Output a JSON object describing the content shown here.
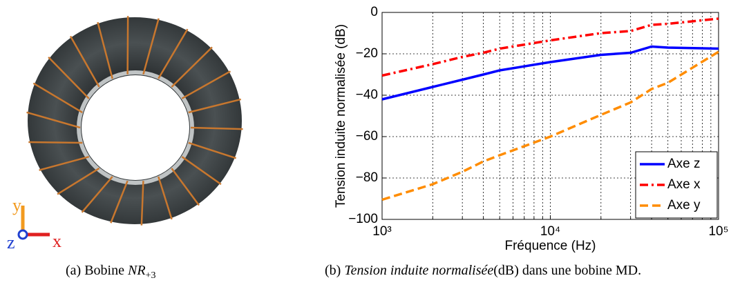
{
  "figure_a": {
    "axis_labels": {
      "y": "y",
      "z": "z",
      "x": "x"
    },
    "caption": {
      "prefix": "(a) Bobine ",
      "symbol": "NR",
      "subscript": "+3"
    }
  },
  "chart_data": {
    "type": "line",
    "x_label": "Fréquence (Hz)",
    "y_label": "Tension induite normalisée (dB)",
    "x": [
      1000,
      2000,
      3000,
      4000,
      5000,
      10000,
      20000,
      30000,
      40000,
      50000,
      100000
    ],
    "series": [
      {
        "name": "Axe z",
        "color": "#0000ff",
        "dash": "solid",
        "values": [
          -42,
          -36,
          -32.5,
          -30,
          -28,
          -24,
          -20.5,
          -19.5,
          -16.5,
          -17,
          -17.5
        ]
      },
      {
        "name": "Axe x",
        "color": "#ff0000",
        "dash": "dashdot",
        "values": [
          -30.5,
          -25,
          -21.5,
          -19.5,
          -17.5,
          -13.5,
          -10,
          -9,
          -6,
          -5.5,
          -3
        ]
      },
      {
        "name": "Axe y",
        "color": "#ff8c00",
        "dash": "dashed",
        "values": [
          -90.5,
          -83,
          -77,
          -72,
          -69,
          -60,
          -49.5,
          -43.5,
          -37,
          -34,
          -19
        ]
      }
    ],
    "xlim": [
      1000,
      100000
    ],
    "log_x": true,
    "xticks": [
      {
        "value": 1000,
        "label": "10³"
      },
      {
        "value": 10000,
        "label": "10⁴"
      },
      {
        "value": 100000,
        "label": "10⁵"
      }
    ],
    "xminor_ticks": [
      2000,
      3000,
      4000,
      5000,
      6000,
      7000,
      8000,
      9000,
      20000,
      30000,
      40000,
      50000,
      60000,
      70000,
      80000,
      90000
    ],
    "ylim": [
      -100,
      0
    ],
    "yticks": [
      {
        "value": -100,
        "label": "−100"
      },
      {
        "value": -80,
        "label": "−80"
      },
      {
        "value": -60,
        "label": "−60"
      },
      {
        "value": -40,
        "label": "−40"
      },
      {
        "value": -20,
        "label": "−20"
      },
      0
    ],
    "grid": true,
    "legend": "lower right"
  },
  "caption_b": {
    "prefix": "(b) ",
    "italic": "Tension induite normalisée",
    "rest": "(dB) dans une bobine MD."
  }
}
